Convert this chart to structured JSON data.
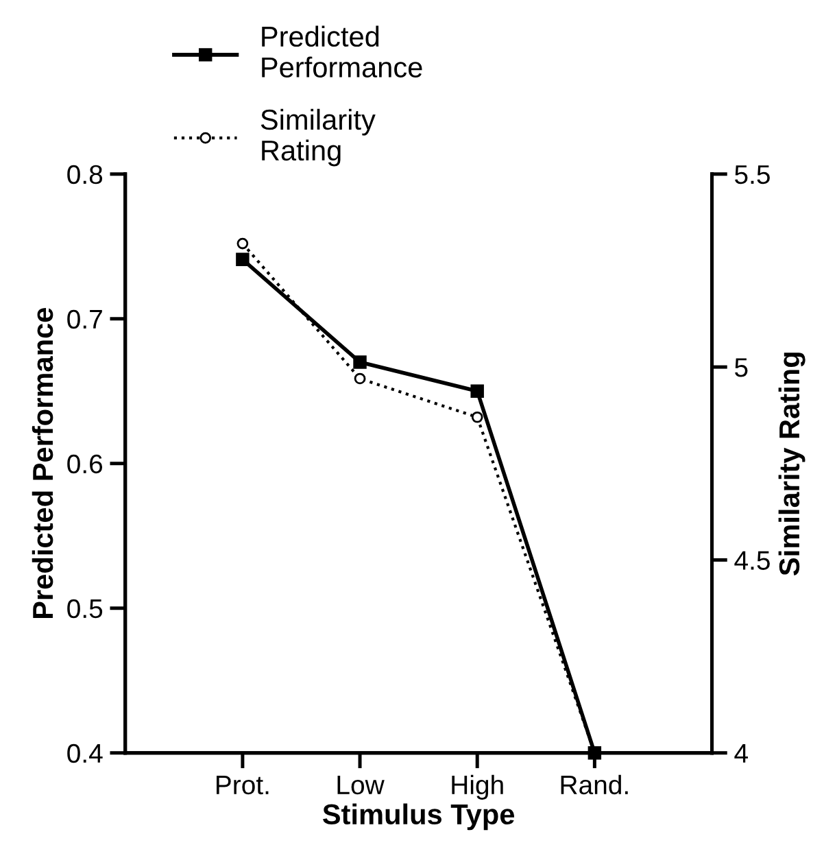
{
  "chart_data": {
    "type": "line",
    "xlabel": "Stimulus Type",
    "ylabel": "Predicted Performance",
    "y2label": "Similarity Rating",
    "categories": [
      "Prot.",
      "Low",
      "High",
      "Rand."
    ],
    "series": [
      {
        "name": "Predicted Performance",
        "color": "#000000",
        "values": [
          0.741,
          0.67,
          0.65,
          0.4
        ],
        "marker": "square",
        "line_style": "solid"
      },
      {
        "name": "Similarity Rating",
        "color": "#000000",
        "values": [
          5.32,
          4.97,
          4.87,
          4.0
        ],
        "marker": "circle",
        "line_style": "dotted",
        "axis": "y2"
      }
    ],
    "ylim": [
      0.4,
      0.8
    ],
    "yticks": [
      0.4,
      0.5,
      0.6,
      0.7,
      0.8
    ],
    "y2lim": [
      4,
      5.5
    ],
    "y2ticks": [
      4,
      4.5,
      5,
      5.5
    ],
    "grid": false,
    "legend": "top left"
  }
}
